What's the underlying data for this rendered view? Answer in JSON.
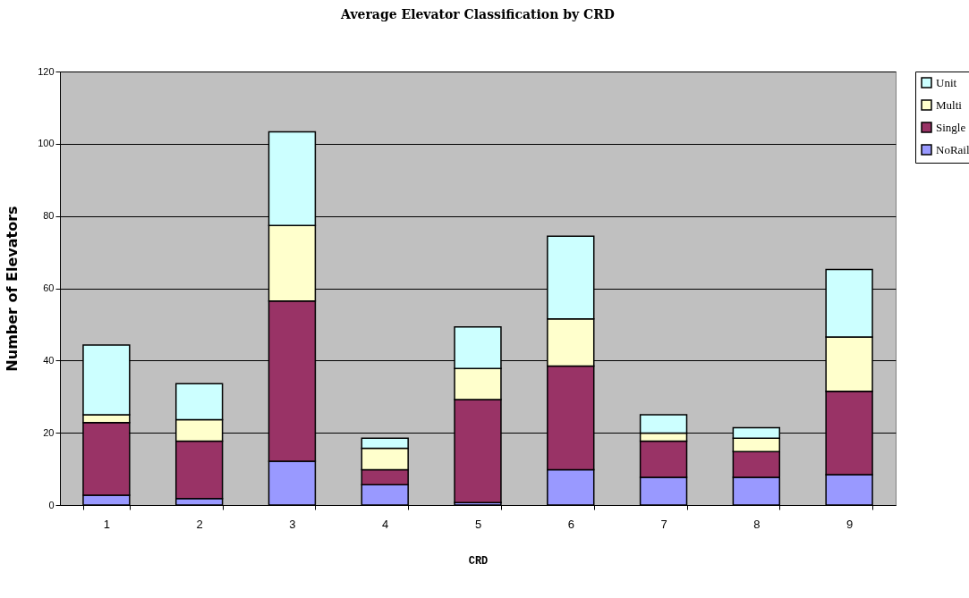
{
  "chart_data": {
    "type": "bar",
    "title": "Average Elevator Classification by CRD",
    "xlabel": "CRD",
    "ylabel": "Number of Elevators",
    "categories": [
      "1",
      "2",
      "3",
      "4",
      "5",
      "6",
      "7",
      "8",
      "9"
    ],
    "stacked": true,
    "series": [
      {
        "name": "NoRail",
        "color": "#9999ff",
        "values": [
          2.7,
          1.8,
          12.1,
          5.6,
          0.7,
          9.8,
          7.7,
          7.7,
          8.4
        ]
      },
      {
        "name": "Single",
        "color": "#993366",
        "values": [
          20.1,
          15.9,
          44.4,
          4.2,
          28.5,
          28.7,
          10,
          7.1,
          23.1
        ]
      },
      {
        "name": "Multi",
        "color": "#ffffcc",
        "values": [
          2.2,
          5.9,
          20.9,
          5.9,
          8.6,
          13,
          2.2,
          3.7,
          15
        ]
      },
      {
        "name": "Unit",
        "color": "#ccffff",
        "values": [
          19.3,
          10,
          25.9,
          2.8,
          11.5,
          22.9,
          5.1,
          2.9,
          18.7
        ]
      }
    ],
    "ylim": [
      0,
      120
    ],
    "yticks": [
      0,
      20,
      40,
      60,
      80,
      100,
      120
    ],
    "grid": "y",
    "legend": "right"
  }
}
